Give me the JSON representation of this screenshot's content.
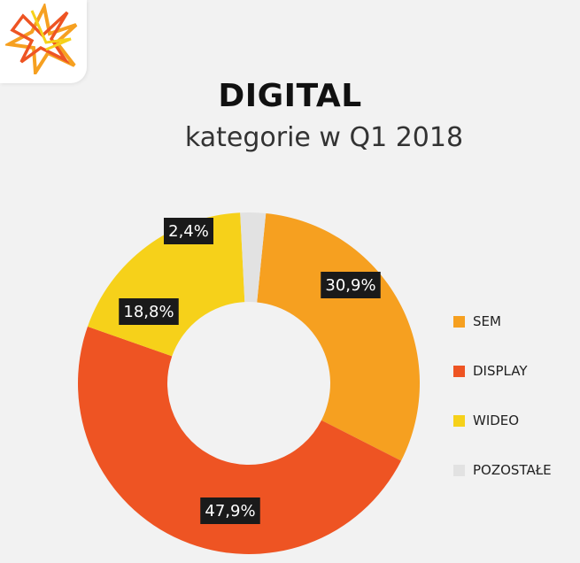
{
  "chart_data": {
    "type": "pie",
    "title": "DIGITAL",
    "subtitle": "kategorie w Q1 2018",
    "categories": [
      "SEM",
      "DISPLAY",
      "WIDEO",
      "POZOSTAŁE"
    ],
    "values": [
      30.9,
      47.9,
      18.8,
      2.4
    ],
    "labels": [
      "30,9%",
      "47,9%",
      "18,8%",
      "2,4%"
    ],
    "colors": [
      "#f6a020",
      "#ee5423",
      "#f6d11a",
      "#e2e2e2"
    ],
    "legend_position": "right"
  }
}
